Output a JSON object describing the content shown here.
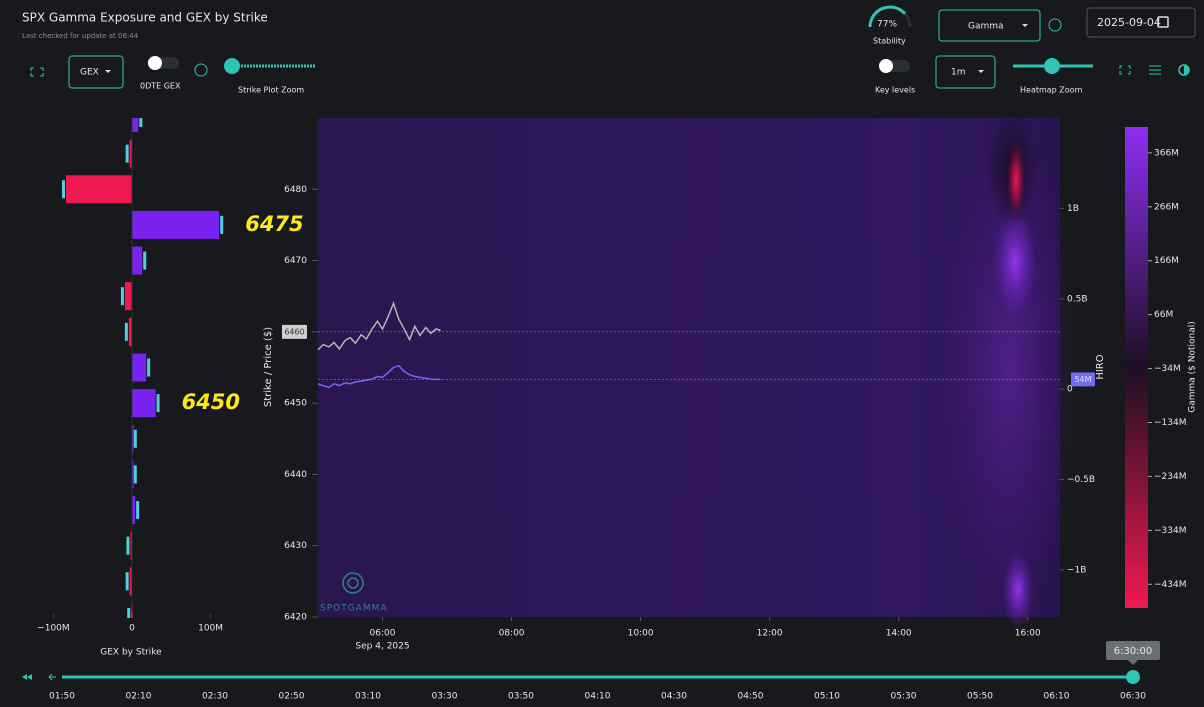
{
  "header": {
    "title": "SPX Gamma Exposure and GEX by Strike",
    "subtitle": "Last checked for update at 06:44"
  },
  "controls": {
    "gex_select": "GEX",
    "zero_dte_label": "0DTE GEX",
    "strike_zoom_label": "Strike Plot Zoom",
    "stability": {
      "value": 77,
      "label": "77%"
    },
    "stability_label": "Stability",
    "mode_select": "Gamma",
    "date": "2025-09-04",
    "key_levels_label": "Key levels",
    "interval_select": "1m",
    "heatmap_zoom_label": "Heatmap Zoom"
  },
  "chart_data": [
    {
      "type": "hbar",
      "xlabel": "GEX by Strike",
      "categories": [
        null,
        null,
        null,
        null,
        null,
        null,
        null,
        null,
        null,
        null,
        null,
        null,
        null,
        null,
        null
      ],
      "values": [
        8,
        -3,
        -84,
        111,
        13,
        -9,
        -4,
        18,
        30,
        1,
        1,
        4,
        -2,
        -3,
        -1
      ],
      "pos_color": "#7b22f0",
      "neg_color": "#f0194f",
      "xlim": [
        -140,
        140
      ],
      "xticks": [
        {
          "value": -100,
          "label": "−100M"
        },
        0,
        {
          "value": 100,
          "label": "100M"
        }
      ],
      "annotations": [
        {
          "text": "6475",
          "index": 3
        },
        {
          "text": "6450",
          "index": 8
        }
      ]
    },
    {
      "type": "heatmap",
      "ylabel": "Strike / Price ($)",
      "y2label": "HIRO",
      "colorbar_label": "Gamma ($ Notional)",
      "xlim": [
        5,
        16.5
      ],
      "xticks": [
        {
          "value": 6,
          "label": "06:00"
        },
        {
          "value": 8,
          "label": "08:00"
        },
        {
          "value": 10,
          "label": "10:00"
        },
        {
          "value": 12,
          "label": "12:00"
        },
        {
          "value": 14,
          "label": "14:00"
        },
        {
          "value": 16,
          "label": "16:00"
        }
      ],
      "x_sublabel": "Sep 4, 2025",
      "ylim": [
        6420,
        6490
      ],
      "yticks": [
        6420,
        6430,
        6440,
        6450,
        6460,
        6470,
        6480
      ],
      "y2lim": [
        -1.26,
        1.5
      ],
      "y2ticks": [
        {
          "value": -1,
          "label": "−1B"
        },
        {
          "value": -0.5,
          "label": "−0.5B"
        },
        0,
        {
          "value": 0.5,
          "label": "0.5B"
        },
        {
          "value": 1,
          "label": "1B"
        }
      ],
      "clim": [
        -478,
        414
      ],
      "cticks": [
        {
          "value": 366,
          "label": "366M"
        },
        {
          "value": 266,
          "label": "266M"
        },
        {
          "value": 166,
          "label": "166M"
        },
        {
          "value": 66,
          "label": "66M"
        },
        {
          "value": -34,
          "label": "−34M"
        },
        {
          "value": -134,
          "label": "−134M"
        },
        {
          "value": -234,
          "label": "−234M"
        },
        {
          "value": -334,
          "label": "−334M"
        },
        {
          "value": -434,
          "label": "−434M"
        }
      ],
      "series": [
        {
          "color": "#b5b5b5",
          "x": [
            5.0,
            5.08,
            5.17,
            5.25,
            5.33,
            5.42,
            5.5,
            5.58,
            5.67,
            5.75,
            5.83,
            5.92,
            6.0,
            6.08,
            6.17,
            6.25,
            6.33,
            6.42,
            6.5,
            6.58,
            6.67,
            6.75,
            6.83,
            6.9
          ],
          "values": [
            6457.5,
            6458.2,
            6457.9,
            6458.5,
            6457.6,
            6458.8,
            6459.2,
            6458.4,
            6459.6,
            6459.0,
            6460.3,
            6461.5,
            6460.4,
            6462.0,
            6464.0,
            6461.8,
            6460.5,
            6458.9,
            6460.8,
            6459.5,
            6460.6,
            6459.8,
            6460.4,
            6460.2
          ]
        },
        {
          "color": "#6f6cf0",
          "axis": "y2",
          "x": [
            5.0,
            5.08,
            5.17,
            5.25,
            5.33,
            5.42,
            5.5,
            5.58,
            5.67,
            5.75,
            5.83,
            5.92,
            6.0,
            6.08,
            6.17,
            6.25,
            6.33,
            6.42,
            6.5,
            6.58,
            6.67,
            6.75,
            6.83,
            6.9
          ],
          "values": [
            0.03,
            0.02,
            0.01,
            0.03,
            0.02,
            0.035,
            0.03,
            0.04,
            0.045,
            0.05,
            0.055,
            0.07,
            0.065,
            0.09,
            0.12,
            0.13,
            0.1,
            0.08,
            0.07,
            0.065,
            0.06,
            0.055,
            0.054,
            0.054
          ]
        }
      ],
      "current_price": {
        "value": 6460,
        "label": "6460"
      },
      "current_hiro": {
        "value": 0.054,
        "label": "54M"
      },
      "watermark": "SPOTGAMMA"
    }
  ],
  "timeline": {
    "ticks": [
      "01:50",
      "02:10",
      "02:30",
      "02:50",
      "03:10",
      "03:30",
      "03:50",
      "04:10",
      "04:30",
      "04:50",
      "05:10",
      "05:30",
      "05:50",
      "06:10",
      "06:30"
    ],
    "current": "6:30:00"
  }
}
